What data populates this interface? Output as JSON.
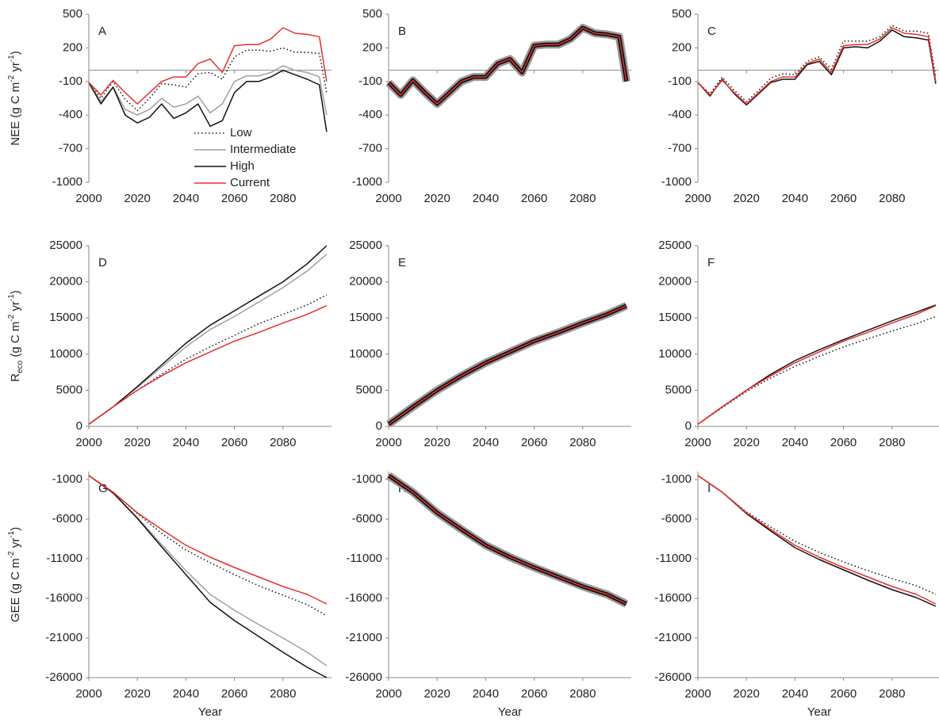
{
  "chart_data": [
    {
      "type": "line",
      "label": "A",
      "ylabel": [
        {
          "text": "NEE (g C m"
        },
        {
          "text": "-2",
          "script": "super"
        },
        {
          "text": " yr"
        },
        {
          "text": "-1",
          "script": "super"
        },
        {
          "text": ")"
        }
      ],
      "x": [
        2000,
        2005,
        2010,
        2015,
        2020,
        2025,
        2030,
        2035,
        2040,
        2045,
        2050,
        2055,
        2060,
        2065,
        2070,
        2075,
        2080,
        2085,
        2090,
        2095,
        2098
      ],
      "xlim": [
        2000,
        2100
      ],
      "xticks": [
        2000,
        2020,
        2040,
        2060,
        2080
      ],
      "ylim": [
        -1000,
        500
      ],
      "yticks": [
        500,
        200,
        -100,
        -400,
        -700,
        -1000
      ],
      "zero_line": true,
      "legend": "lower right",
      "series": [
        {
          "name": "Low",
          "color": "#111111",
          "style": "dotted",
          "values": [
            -110,
            -250,
            -100,
            -260,
            -360,
            -250,
            -120,
            -130,
            -150,
            -30,
            -20,
            -80,
            120,
            180,
            180,
            170,
            200,
            160,
            160,
            150,
            -200
          ]
        },
        {
          "name": "Intermediate",
          "color": "#a0a0a0",
          "values": [
            -110,
            -280,
            -150,
            -350,
            -400,
            -350,
            -250,
            -330,
            -300,
            -230,
            -380,
            -300,
            -100,
            -50,
            -50,
            -20,
            40,
            0,
            -20,
            -60,
            -400
          ]
        },
        {
          "name": "High",
          "color": "#111111",
          "values": [
            -110,
            -300,
            -150,
            -400,
            -470,
            -420,
            -300,
            -430,
            -380,
            -300,
            -500,
            -450,
            -200,
            -100,
            -100,
            -60,
            0,
            -40,
            -80,
            -130,
            -550
          ]
        },
        {
          "name": "Current",
          "color": "#e8302e",
          "values": [
            -110,
            -220,
            -90,
            -200,
            -300,
            -200,
            -100,
            -60,
            -60,
            60,
            100,
            -20,
            220,
            230,
            230,
            280,
            380,
            330,
            320,
            300,
            -100
          ]
        }
      ]
    },
    {
      "type": "line",
      "label": "B",
      "x": [
        2000,
        2005,
        2010,
        2015,
        2020,
        2025,
        2030,
        2035,
        2040,
        2045,
        2050,
        2055,
        2060,
        2065,
        2070,
        2075,
        2080,
        2085,
        2090,
        2095,
        2098
      ],
      "xlim": [
        2000,
        2100
      ],
      "xticks": [
        2000,
        2020,
        2040,
        2060,
        2080
      ],
      "ylim": [
        -1000,
        500
      ],
      "yticks": [
        500,
        200,
        -100,
        -400,
        -700,
        -1000
      ],
      "zero_line": true,
      "series": [
        {
          "color": "#999999",
          "width": 10,
          "values": [
            -110,
            -220,
            -90,
            -200,
            -300,
            -200,
            -100,
            -60,
            -60,
            60,
            100,
            -20,
            220,
            230,
            230,
            280,
            380,
            330,
            320,
            300,
            -100
          ]
        },
        {
          "color": "#111111",
          "width": 5,
          "values": [
            -110,
            -220,
            -90,
            -200,
            -300,
            -200,
            -100,
            -60,
            -60,
            60,
            100,
            -20,
            220,
            230,
            230,
            280,
            380,
            330,
            320,
            300,
            -100
          ]
        },
        {
          "color": "#e8302e",
          "values": [
            -110,
            -220,
            -90,
            -200,
            -300,
            -200,
            -100,
            -60,
            -60,
            60,
            100,
            -20,
            220,
            230,
            230,
            280,
            380,
            330,
            320,
            300,
            -100
          ]
        }
      ]
    },
    {
      "type": "line",
      "label": "C",
      "x": [
        2000,
        2005,
        2010,
        2015,
        2020,
        2025,
        2030,
        2035,
        2040,
        2045,
        2050,
        2055,
        2060,
        2065,
        2070,
        2075,
        2080,
        2085,
        2090,
        2095,
        2098
      ],
      "xlim": [
        2000,
        2100
      ],
      "xticks": [
        2000,
        2020,
        2040,
        2060,
        2080
      ],
      "ylim": [
        -1000,
        500
      ],
      "yticks": [
        500,
        200,
        -100,
        -400,
        -700,
        -1000
      ],
      "zero_line": true,
      "series": [
        {
          "color": "#111111",
          "style": "dotted",
          "values": [
            -110,
            -210,
            -60,
            -180,
            -280,
            -180,
            -70,
            -30,
            -40,
            80,
            120,
            10,
            260,
            260,
            260,
            300,
            400,
            350,
            350,
            330,
            -60
          ]
        },
        {
          "color": "#111111",
          "values": [
            -110,
            -230,
            -80,
            -210,
            -310,
            -210,
            -110,
            -80,
            -80,
            50,
            80,
            -40,
            200,
            210,
            200,
            260,
            360,
            300,
            290,
            270,
            -120
          ]
        },
        {
          "color": "#e8302e",
          "values": [
            -110,
            -220,
            -90,
            -200,
            -300,
            -200,
            -100,
            -60,
            -60,
            60,
            100,
            -20,
            220,
            230,
            230,
            280,
            380,
            330,
            320,
            300,
            -100
          ]
        }
      ]
    },
    {
      "type": "line",
      "label": "D",
      "ylabel": [
        {
          "text": "R"
        },
        {
          "text": "eco",
          "script": "sub"
        },
        {
          "text": " (g C m"
        },
        {
          "text": "-2",
          "script": "super"
        },
        {
          "text": " yr"
        },
        {
          "text": "-1",
          "script": "super"
        },
        {
          "text": ")"
        }
      ],
      "x": [
        2000,
        2010,
        2020,
        2030,
        2040,
        2050,
        2060,
        2070,
        2080,
        2090,
        2098
      ],
      "xlim": [
        2000,
        2100
      ],
      "xticks": [
        2000,
        2020,
        2040,
        2060,
        2080
      ],
      "ylim": [
        0,
        25000
      ],
      "yticks": [
        25000,
        20000,
        15000,
        10000,
        5000,
        0
      ],
      "series": [
        {
          "color": "#111111",
          "style": "dotted",
          "values": [
            300,
            2700,
            5000,
            7200,
            9300,
            11000,
            12600,
            14200,
            15500,
            16800,
            18200
          ]
        },
        {
          "color": "#a0a0a0",
          "values": [
            300,
            2700,
            5400,
            8200,
            11000,
            13400,
            15200,
            17200,
            19200,
            21500,
            23800
          ]
        },
        {
          "color": "#111111",
          "values": [
            300,
            2700,
            5500,
            8500,
            11500,
            14000,
            16000,
            18000,
            20000,
            22500,
            25000
          ]
        },
        {
          "color": "#e8302e",
          "values": [
            300,
            2700,
            5000,
            7000,
            8800,
            10300,
            11800,
            13000,
            14300,
            15500,
            16700
          ]
        }
      ]
    },
    {
      "type": "line",
      "label": "E",
      "x": [
        2000,
        2010,
        2020,
        2030,
        2040,
        2050,
        2060,
        2070,
        2080,
        2090,
        2098
      ],
      "xlim": [
        2000,
        2100
      ],
      "xticks": [
        2000,
        2020,
        2040,
        2060,
        2080
      ],
      "ylim": [
        0,
        25000
      ],
      "yticks": [
        25000,
        20000,
        15000,
        10000,
        5000,
        0
      ],
      "series": [
        {
          "color": "#999999",
          "width": 10,
          "values": [
            300,
            2700,
            5000,
            7000,
            8800,
            10300,
            11800,
            13000,
            14300,
            15500,
            16700
          ]
        },
        {
          "color": "#111111",
          "width": 5,
          "values": [
            300,
            2700,
            5000,
            7000,
            8800,
            10300,
            11800,
            13000,
            14300,
            15500,
            16700
          ]
        },
        {
          "color": "#e8302e",
          "values": [
            300,
            2700,
            5000,
            7000,
            8800,
            10300,
            11800,
            13000,
            14300,
            15500,
            16700
          ]
        }
      ]
    },
    {
      "type": "line",
      "label": "F",
      "x": [
        2000,
        2010,
        2020,
        2030,
        2040,
        2050,
        2060,
        2070,
        2080,
        2090,
        2098
      ],
      "xlim": [
        2000,
        2100
      ],
      "xticks": [
        2000,
        2020,
        2040,
        2060,
        2080
      ],
      "ylim": [
        0,
        25000
      ],
      "yticks": [
        25000,
        20000,
        15000,
        10000,
        5000,
        0
      ],
      "series": [
        {
          "color": "#111111",
          "style": "dotted",
          "values": [
            300,
            2600,
            4800,
            6700,
            8300,
            9700,
            11000,
            12100,
            13200,
            14200,
            15200
          ]
        },
        {
          "color": "#111111",
          "values": [
            300,
            2700,
            5000,
            7200,
            9100,
            10600,
            12000,
            13300,
            14600,
            15800,
            16800
          ]
        },
        {
          "color": "#e8302e",
          "values": [
            300,
            2700,
            5000,
            7000,
            8800,
            10300,
            11800,
            13000,
            14300,
            15500,
            16700
          ]
        }
      ]
    },
    {
      "type": "line",
      "label": "G",
      "xlabel": "Year",
      "ylabel": [
        {
          "text": "GEE (g C m"
        },
        {
          "text": "-2",
          "script": "super"
        },
        {
          "text": " yr"
        },
        {
          "text": "-1",
          "script": "super"
        },
        {
          "text": ")"
        }
      ],
      "x": [
        2000,
        2010,
        2020,
        2030,
        2040,
        2050,
        2060,
        2070,
        2080,
        2090,
        2098
      ],
      "xlim": [
        2000,
        2100
      ],
      "xticks": [
        2000,
        2020,
        2040,
        2060,
        2080
      ],
      "ylim": [
        -26000,
        0
      ],
      "yticks": [
        -1000,
        -6000,
        -11000,
        -16000,
        -21000,
        -26000
      ],
      "series": [
        {
          "color": "#111111",
          "style": "dotted",
          "values": [
            -500,
            -2600,
            -5300,
            -7800,
            -9900,
            -11500,
            -13000,
            -14400,
            -15600,
            -16800,
            -18200
          ]
        },
        {
          "color": "#a0a0a0",
          "values": [
            -500,
            -2700,
            -5800,
            -9200,
            -12500,
            -15500,
            -17500,
            -19300,
            -21000,
            -22800,
            -24500
          ]
        },
        {
          "color": "#111111",
          "values": [
            -500,
            -2700,
            -5900,
            -9500,
            -13000,
            -16500,
            -18800,
            -20800,
            -22800,
            -24700,
            -26000
          ]
        },
        {
          "color": "#e8302e",
          "values": [
            -500,
            -2600,
            -5200,
            -7300,
            -9300,
            -10800,
            -12100,
            -13300,
            -14500,
            -15500,
            -16700
          ]
        }
      ]
    },
    {
      "type": "line",
      "label": "H",
      "xlabel": "Year",
      "x": [
        2000,
        2010,
        2020,
        2030,
        2040,
        2050,
        2060,
        2070,
        2080,
        2090,
        2098
      ],
      "xlim": [
        2000,
        2100
      ],
      "xticks": [
        2000,
        2020,
        2040,
        2060,
        2080
      ],
      "ylim": [
        -26000,
        0
      ],
      "yticks": [
        -1000,
        -6000,
        -11000,
        -16000,
        -21000,
        -26000
      ],
      "series": [
        {
          "color": "#999999",
          "width": 10,
          "values": [
            -500,
            -2600,
            -5200,
            -7300,
            -9300,
            -10800,
            -12100,
            -13300,
            -14500,
            -15500,
            -16700
          ]
        },
        {
          "color": "#111111",
          "width": 5,
          "values": [
            -500,
            -2600,
            -5200,
            -7300,
            -9300,
            -10800,
            -12100,
            -13300,
            -14500,
            -15500,
            -16700
          ]
        },
        {
          "color": "#e8302e",
          "values": [
            -500,
            -2600,
            -5200,
            -7300,
            -9300,
            -10800,
            -12100,
            -13300,
            -14500,
            -15500,
            -16700
          ]
        }
      ]
    },
    {
      "type": "line",
      "label": "I",
      "xlabel": "Year",
      "x": [
        2000,
        2010,
        2020,
        2030,
        2040,
        2050,
        2060,
        2070,
        2080,
        2090,
        2098
      ],
      "xlim": [
        2000,
        2100
      ],
      "xticks": [
        2000,
        2020,
        2040,
        2060,
        2080
      ],
      "ylim": [
        -26000,
        0
      ],
      "yticks": [
        -1000,
        -6000,
        -11000,
        -16000,
        -21000,
        -26000
      ],
      "series": [
        {
          "color": "#111111",
          "style": "dotted",
          "values": [
            -500,
            -2600,
            -5100,
            -7000,
            -8800,
            -10200,
            -11400,
            -12500,
            -13500,
            -14400,
            -15500
          ]
        },
        {
          "color": "#111111",
          "values": [
            -500,
            -2600,
            -5300,
            -7500,
            -9600,
            -11100,
            -12400,
            -13700,
            -14900,
            -15900,
            -17000
          ]
        },
        {
          "color": "#e8302e",
          "values": [
            -500,
            -2600,
            -5200,
            -7300,
            -9300,
            -10800,
            -12100,
            -13300,
            -14500,
            -15500,
            -16700
          ]
        }
      ]
    }
  ]
}
